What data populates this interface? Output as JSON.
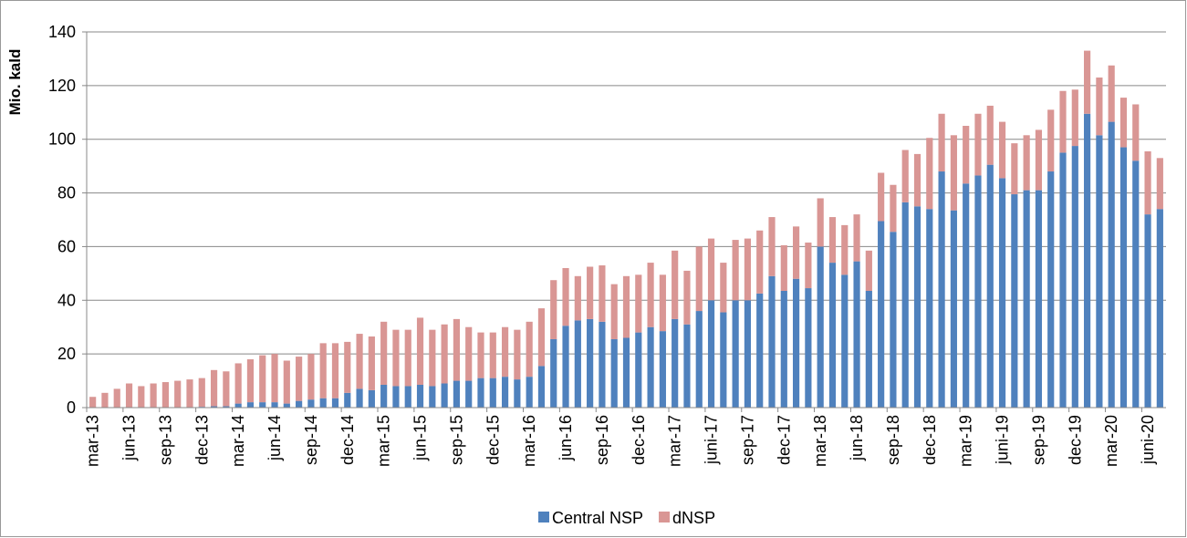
{
  "chart_data": {
    "type": "stacked-bar",
    "y_label": "Mio. kald",
    "categories": [
      "mar-13",
      null,
      null,
      "jun-13",
      null,
      null,
      "sep-13",
      null,
      null,
      "dec-13",
      null,
      null,
      "mar-14",
      null,
      null,
      "jun-14",
      null,
      null,
      "sep-14",
      null,
      null,
      "dec-14",
      null,
      null,
      "mar-15",
      null,
      null,
      "jun-15",
      null,
      null,
      "sep-15",
      null,
      null,
      "dec-15",
      null,
      null,
      "mar-16",
      null,
      null,
      "jun-16",
      null,
      null,
      "sep-16",
      null,
      null,
      "dec-16",
      null,
      null,
      "mar-17",
      null,
      null,
      "juni-17",
      null,
      null,
      "sep-17",
      null,
      null,
      "dec-17",
      null,
      null,
      "mar-18",
      null,
      null,
      "jun-18",
      null,
      null,
      "sep-18",
      null,
      null,
      "dec-18",
      null,
      null,
      "mar-19",
      null,
      null,
      "juni-19",
      null,
      null,
      "sep-19",
      null,
      null,
      "dec-19",
      null,
      null,
      "mar-20",
      null,
      null,
      "juni-20",
      null
    ],
    "series": [
      {
        "name": "Central NSP",
        "color": "#4f81bd",
        "values": [
          0,
          0,
          0,
          0,
          0,
          0,
          0,
          0,
          0,
          0.3,
          0.5,
          0.5,
          1.5,
          2,
          2,
          2,
          1.5,
          2.5,
          3,
          3.5,
          3.5,
          5.5,
          7,
          6.5,
          8.5,
          8,
          8,
          8.5,
          8,
          9,
          10,
          10,
          11,
          11,
          11.5,
          10.5,
          11.5,
          15.5,
          25.5,
          30.5,
          32.5,
          33,
          32,
          25.5,
          26,
          28,
          30,
          28.5,
          33,
          31,
          36,
          40,
          35.5,
          40,
          40,
          42.5,
          49,
          43.5,
          48,
          44.5,
          60,
          54,
          49.5,
          54.5,
          43.5,
          69.5,
          65.5,
          76.5,
          75,
          74,
          88,
          73.5,
          83.5,
          86.5,
          90.5,
          85.5,
          79.5,
          81,
          81,
          88,
          95,
          97.5,
          109.5,
          101.5,
          106.5,
          97,
          92,
          72,
          74
        ]
      },
      {
        "name": "dNSP",
        "color": "#d99694",
        "values": [
          4,
          5.5,
          7,
          9,
          8,
          9,
          9.5,
          10,
          10.5,
          10.7,
          13.5,
          13,
          15,
          16,
          17.5,
          18,
          16,
          16.5,
          17,
          20.5,
          20.5,
          19,
          20.5,
          20,
          23.5,
          21,
          21,
          25,
          21,
          22,
          23,
          20,
          17,
          17,
          18.5,
          18.5,
          20.5,
          21.5,
          22,
          21.5,
          16.5,
          19.5,
          21,
          20.5,
          23,
          21.5,
          24,
          21,
          25.5,
          20,
          24,
          23,
          18.5,
          22.5,
          23,
          23.5,
          22,
          17,
          19.5,
          17,
          18,
          17,
          18.5,
          17.5,
          15,
          18,
          17.5,
          19.5,
          19.5,
          26.5,
          21.5,
          28,
          21.5,
          23,
          22,
          21,
          19,
          20.5,
          22.5,
          23,
          23,
          21,
          23.5,
          21.5,
          21,
          18.5,
          21,
          23.5,
          19
        ]
      }
    ],
    "ylim": [
      0,
      140
    ],
    "yticks": [
      0,
      20,
      40,
      60,
      80,
      100,
      120,
      140
    ],
    "grid": true,
    "legend": "bottom"
  }
}
